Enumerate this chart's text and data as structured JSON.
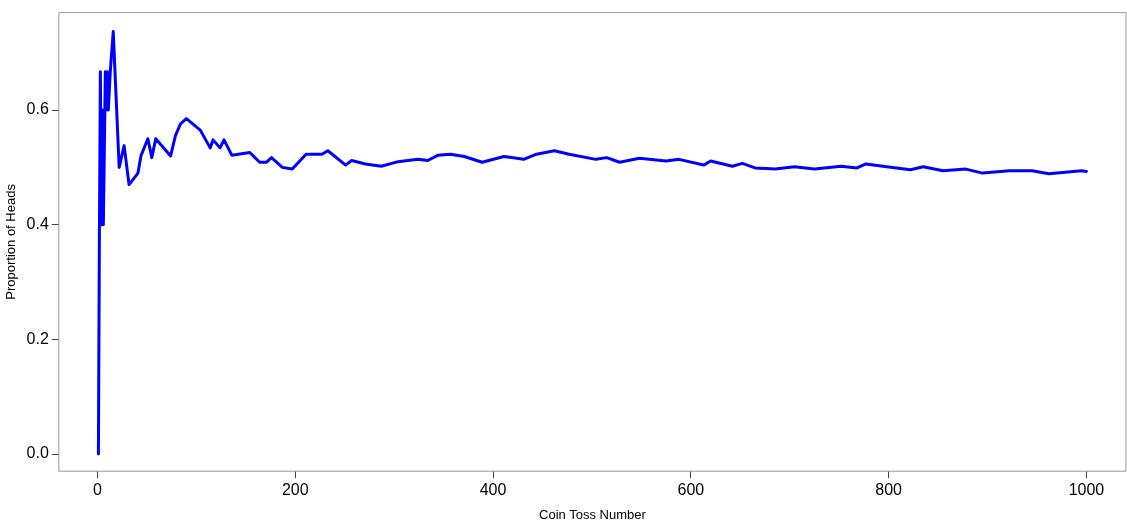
{
  "chart_data": {
    "type": "line",
    "xlabel": "Coin Toss Number",
    "ylabel": "Proportion of Heads",
    "x": [
      1,
      2,
      3,
      4,
      5,
      6,
      8,
      9,
      10,
      11,
      13,
      16,
      22,
      27,
      32,
      41,
      44,
      51,
      55,
      59,
      74,
      79,
      84,
      90,
      104,
      114,
      117,
      124,
      128,
      136,
      154,
      164,
      171,
      176,
      187,
      197,
      211,
      227,
      233,
      251,
      257,
      271,
      287,
      304,
      324,
      334,
      344,
      357,
      371,
      389,
      411,
      431,
      444,
      462,
      477,
      504,
      515,
      528,
      548,
      575,
      588,
      613,
      620,
      642,
      652,
      665,
      685,
      705,
      725,
      752,
      768,
      777,
      798,
      822,
      835,
      855,
      878,
      895,
      922,
      945,
      962,
      995,
      1000
    ],
    "series": [
      {
        "color": "#0000ff",
        "values": [
          0,
          0.38,
          0.667,
          0.4,
          0.6,
          0.4,
          0.667,
          0.6,
          0.667,
          0.6,
          0.667,
          0.737,
          0.5,
          0.538,
          0.47,
          0.49,
          0.52,
          0.55,
          0.517,
          0.55,
          0.52,
          0.556,
          0.576,
          0.585,
          0.565,
          0.534,
          0.548,
          0.534,
          0.548,
          0.521,
          0.526,
          0.509,
          0.509,
          0.517,
          0.5,
          0.497,
          0.523,
          0.523,
          0.529,
          0.504,
          0.512,
          0.506,
          0.502,
          0.51,
          0.514,
          0.512,
          0.521,
          0.523,
          0.519,
          0.509,
          0.519,
          0.514,
          0.523,
          0.529,
          0.523,
          0.514,
          0.517,
          0.509,
          0.516,
          0.511,
          0.514,
          0.504,
          0.511,
          0.502,
          0.507,
          0.499,
          0.497,
          0.501,
          0.497,
          0.502,
          0.499,
          0.506,
          0.501,
          0.496,
          0.501,
          0.494,
          0.497,
          0.49,
          0.494,
          0.494,
          0.489,
          0.494,
          0.493
        ]
      }
    ],
    "xlim": [
      -39,
      1040
    ],
    "ylim": [
      -0.03,
      0.77
    ],
    "xticks": [
      0,
      200,
      400,
      600,
      800,
      1000
    ],
    "yticks": [
      {
        "value": 0,
        "label": "0.0"
      },
      {
        "value": 0.2,
        "label": "0.2"
      },
      {
        "value": 0.4,
        "label": "0.4"
      },
      {
        "value": 0.6,
        "label": "0.6"
      }
    ],
    "grid": false,
    "legend": false,
    "marker": "none",
    "line_style": "solid"
  }
}
